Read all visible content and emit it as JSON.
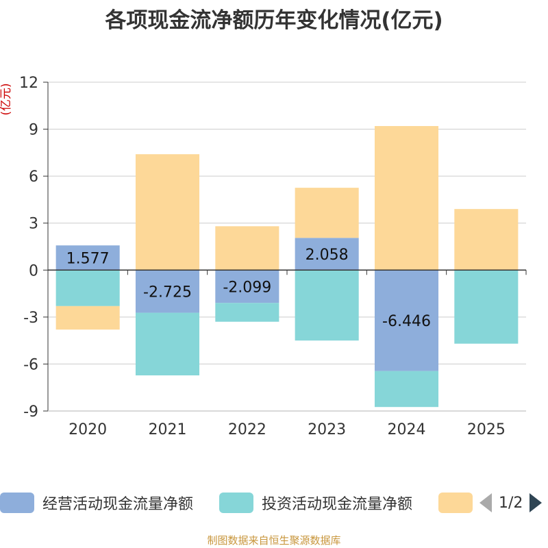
{
  "chart_data": {
    "type": "bar",
    "stacked": true,
    "title": "各项现金流净额历年变化情况(亿元)",
    "ylabel": "(亿元)",
    "ylim": [
      -9,
      12
    ],
    "yticks": [
      -9,
      -6,
      -3,
      0,
      3,
      6,
      9,
      12
    ],
    "categories": [
      "2020",
      "2021",
      "2022",
      "2023",
      "2024",
      "2025"
    ],
    "series": [
      {
        "name": "经营活动现金流量净额",
        "color": "#8eaedb",
        "values": [
          1.577,
          -2.725,
          -2.099,
          2.058,
          -6.446,
          0.0
        ],
        "labels": [
          "1.577",
          "-2.725",
          "-2.099",
          "2.058",
          "-6.446",
          ""
        ]
      },
      {
        "name": "投资活动现金流量净额",
        "color": "#86d6d8",
        "values": [
          -2.3,
          -4.0,
          -1.2,
          -4.5,
          -2.3,
          -4.7
        ]
      },
      {
        "name": "",
        "color": "#fdd898",
        "values": [
          -1.5,
          7.4,
          2.8,
          3.2,
          9.2,
          3.9
        ]
      }
    ],
    "grid": true,
    "legend_position": "bottom"
  },
  "legend": {
    "page_indicator": "1/2"
  },
  "source": "制图数据来自恒生聚源数据库"
}
